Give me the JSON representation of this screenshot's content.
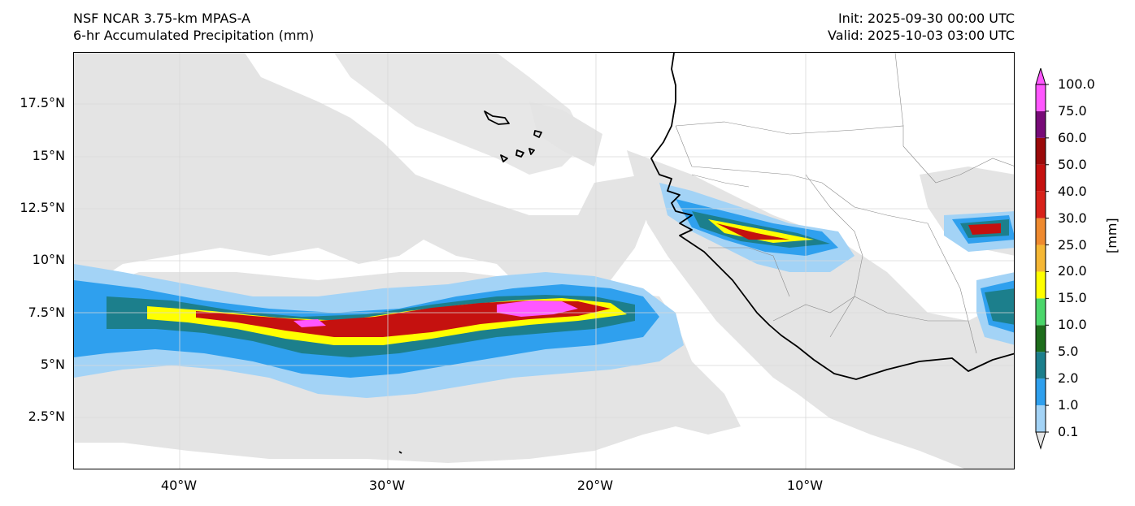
{
  "header": {
    "model_title": "NSF NCAR 3.75-km MPAS-A",
    "field_title": "6-hr Accumulated Precipitation (mm)",
    "init_label": "Init: 2025-09-30 00:00 UTC",
    "valid_label": "Valid: 2025-10-03 03:00 UTC"
  },
  "map": {
    "lat_labels": [
      "17.5°N",
      "15°N",
      "12.5°N",
      "10°N",
      "7.5°N",
      "5°N",
      "2.5°N"
    ],
    "lon_labels": [
      "40°W",
      "30°W",
      "20°W",
      "10°W"
    ]
  },
  "colorbar": {
    "unit_label": "[mm]",
    "levels": [
      "0.1",
      "1.0",
      "2.0",
      "5.0",
      "10.0",
      "15.0",
      "20.0",
      "25.0",
      "30.0",
      "40.0",
      "50.0",
      "60.0",
      "75.0",
      "100.0"
    ],
    "colors": [
      "#e6e6e6",
      "#a3d3f6",
      "#2fa0ee",
      "#1c7f8c",
      "#1e6d1c",
      "#4bd66b",
      "#ffff00",
      "#f5b735",
      "#ef8a2f",
      "#d8221a",
      "#c5110f",
      "#9b0a0a",
      "#780b78",
      "#ff57ff"
    ]
  }
}
